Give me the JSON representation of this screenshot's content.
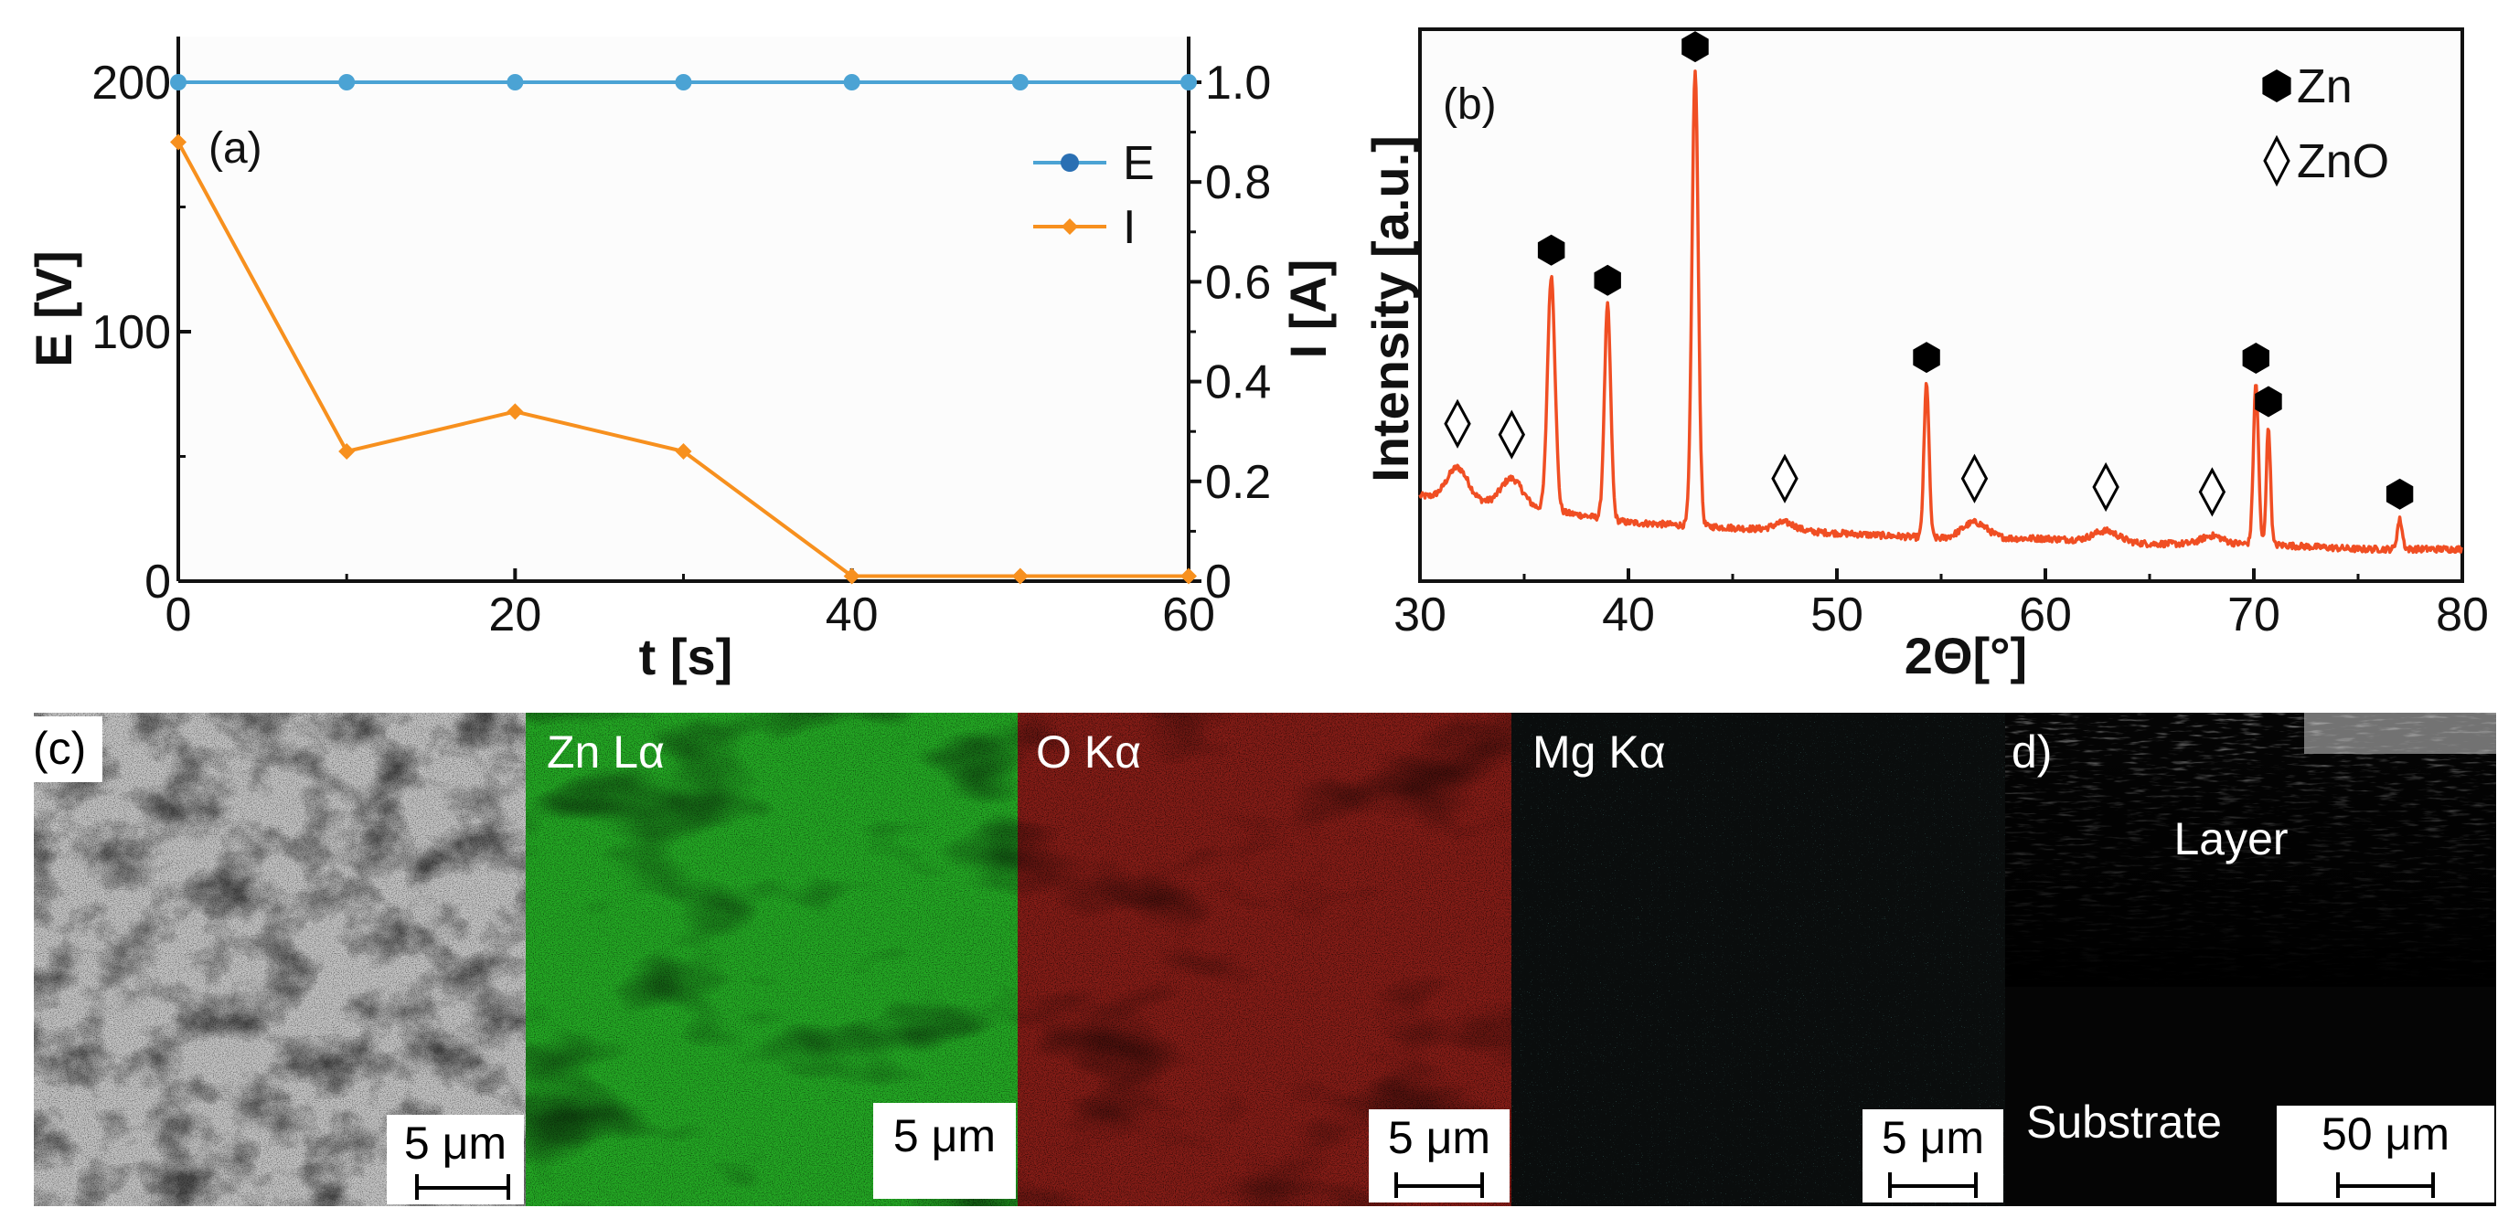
{
  "chart_data": [
    {
      "panel_label": "(a)",
      "type": "line",
      "xlabel": "t [s]",
      "ylabel": "E [V]",
      "y2label": "I [A]",
      "xlim": [
        0,
        60
      ],
      "ylim": [
        0,
        200
      ],
      "y2lim": [
        0,
        1.05
      ],
      "xticks": [
        "0",
        "20",
        "40",
        "60"
      ],
      "yticks": [
        "0",
        "100",
        "200"
      ],
      "y2ticks": [
        "0",
        "0.2",
        "0.4",
        "0.6",
        "0.8",
        "1.0"
      ],
      "legend_position": "top-right",
      "series": [
        {
          "name": "E",
          "axis": "left",
          "color": "#4ba3d4",
          "marker": "circle",
          "x": [
            0,
            10,
            20,
            30,
            40,
            50,
            60
          ],
          "y": [
            200,
            200,
            200,
            200,
            200,
            200,
            200
          ]
        },
        {
          "name": "I",
          "axis": "right",
          "color": "#f7901e",
          "marker": "diamond",
          "x": [
            0,
            10,
            20,
            30,
            40,
            50,
            60
          ],
          "y": [
            0.88,
            0.26,
            0.34,
            0.26,
            0.01,
            0.01,
            0.01
          ]
        }
      ]
    },
    {
      "panel_label": "(b)",
      "type": "line",
      "xlabel": "2Θ[°]",
      "ylabel": "Intensity [a.u.]",
      "xlim": [
        30,
        80
      ],
      "ylim": [
        0,
        100
      ],
      "xticks": [
        "30",
        "40",
        "50",
        "60",
        "70",
        "80"
      ],
      "line_color": "#f04e23",
      "legend_position": "top-right",
      "legend": [
        {
          "label": "Zn",
          "symbol": "hexagon"
        },
        {
          "label": "ZnO",
          "symbol": "diamond"
        }
      ],
      "baseline": {
        "x": [
          30,
          35,
          40,
          45,
          50,
          55,
          60,
          65,
          70,
          75,
          80
        ],
        "y": [
          16,
          14,
          11,
          10,
          9,
          8,
          8,
          7,
          7,
          6,
          6
        ]
      },
      "peaks": [
        {
          "x": 31.8,
          "height": 6,
          "width": 0.5,
          "phase": "ZnO"
        },
        {
          "x": 34.4,
          "height": 5,
          "width": 0.5,
          "phase": "ZnO"
        },
        {
          "x": 36.3,
          "height": 44,
          "width": 0.18,
          "phase": "Zn"
        },
        {
          "x": 39.0,
          "height": 40,
          "width": 0.15,
          "phase": "Zn"
        },
        {
          "x": 43.2,
          "height": 85,
          "width": 0.15,
          "phase": "Zn"
        },
        {
          "x": 47.5,
          "height": 1.5,
          "width": 0.5,
          "phase": "ZnO"
        },
        {
          "x": 54.3,
          "height": 29,
          "width": 0.12,
          "phase": "Zn"
        },
        {
          "x": 56.6,
          "height": 3,
          "width": 0.6,
          "phase": "ZnO"
        },
        {
          "x": 62.9,
          "height": 2,
          "width": 0.6,
          "phase": "ZnO"
        },
        {
          "x": 68.0,
          "height": 1.5,
          "width": 0.5,
          "phase": "ZnO"
        },
        {
          "x": 70.1,
          "height": 30,
          "width": 0.12,
          "phase": "Zn"
        },
        {
          "x": 70.7,
          "height": 22,
          "width": 0.1,
          "phase": "Zn"
        },
        {
          "x": 77.0,
          "height": 5.5,
          "width": 0.12,
          "phase": "Zn"
        }
      ]
    }
  ],
  "micrographs": {
    "panel_c_label": "(c)",
    "panel_d_label": "d)",
    "tiles": [
      {
        "id": "sem",
        "label": "",
        "scale": "5 μm",
        "color": "#8a8a8a"
      },
      {
        "id": "zn",
        "label": "Zn Lα",
        "scale": "5 μm",
        "color": "#2fc52f"
      },
      {
        "id": "o",
        "label": "O Kα",
        "scale": "5 μm",
        "color": "#e4332b"
      },
      {
        "id": "mg",
        "label": "Mg Kα",
        "scale": "5 μm",
        "color": "#2aa7a0"
      },
      {
        "id": "cross",
        "label": "",
        "scale": "50 μm",
        "color": "#ffffff",
        "layer_label": "Layer",
        "substrate_label": "Substrate"
      }
    ]
  }
}
